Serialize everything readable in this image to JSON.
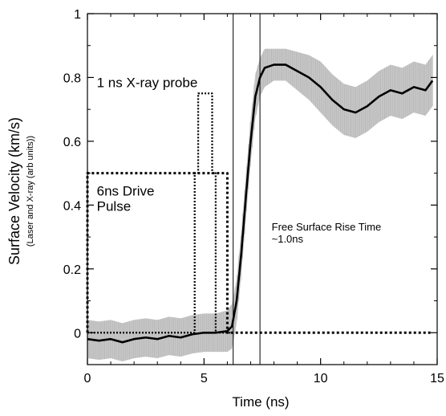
{
  "chart_data": {
    "type": "line",
    "xlabel": "Time (ns)",
    "ylabel": "Surface Velocity (km/s)",
    "ylabel_sub": "(Laser and X-ray (arb units))",
    "xlim": [
      0,
      15
    ],
    "ylim": [
      -0.1,
      1.0
    ],
    "x_ticks": [
      0,
      5,
      10,
      15
    ],
    "y_ticks": [
      0,
      0.2,
      0.4,
      0.6,
      0.8,
      1
    ],
    "x_tick_labels": [
      "0",
      "5",
      "10",
      "15"
    ],
    "y_tick_labels": [
      "0",
      "0.2",
      "0.4",
      "0.6",
      "0.8",
      "1"
    ],
    "grid": false,
    "vlines": [
      6.25,
      7.4
    ],
    "annotations": [
      {
        "lines": [
          "1 ns X-ray probe"
        ],
        "x": 0.4,
        "y": 0.77
      },
      {
        "lines": [
          "6ns Drive",
          "Pulse"
        ],
        "x": 0.4,
        "y": 0.43
      },
      {
        "lines": [
          "Free Surface Rise Time",
          "~1.0ns"
        ],
        "x": 7.9,
        "y": 0.32
      }
    ],
    "series": [
      {
        "role": "velocity",
        "style": "solid",
        "x": [
          0,
          0.5,
          1,
          1.5,
          2,
          2.5,
          3,
          3.5,
          4,
          4.5,
          5,
          5.5,
          6,
          6.2,
          6.4,
          6.6,
          6.8,
          7.0,
          7.2,
          7.4,
          7.6,
          8,
          8.5,
          9,
          9.5,
          10,
          10.5,
          11,
          11.5,
          12,
          12.5,
          13,
          13.5,
          14,
          14.5,
          14.8
        ],
        "y": [
          -0.02,
          -0.025,
          -0.02,
          -0.03,
          -0.02,
          -0.015,
          -0.02,
          -0.01,
          -0.015,
          -0.005,
          0.0,
          0.0,
          0.005,
          0.02,
          0.1,
          0.25,
          0.43,
          0.6,
          0.74,
          0.8,
          0.83,
          0.84,
          0.84,
          0.82,
          0.8,
          0.77,
          0.73,
          0.7,
          0.69,
          0.71,
          0.74,
          0.76,
          0.75,
          0.77,
          0.76,
          0.79
        ]
      },
      {
        "role": "velocity-uncertainty",
        "style": "band",
        "x": [
          0,
          0.5,
          1,
          1.5,
          2,
          2.5,
          3,
          3.5,
          4,
          4.5,
          5,
          5.5,
          6,
          6.2,
          6.4,
          6.6,
          6.8,
          7.0,
          7.2,
          7.4,
          7.6,
          8,
          8.5,
          9,
          9.5,
          10,
          10.5,
          11,
          11.5,
          12,
          12.5,
          13,
          13.5,
          14,
          14.5,
          14.8
        ],
        "lower": [
          -0.08,
          -0.085,
          -0.08,
          -0.09,
          -0.08,
          -0.075,
          -0.08,
          -0.07,
          -0.075,
          -0.065,
          -0.06,
          -0.06,
          -0.06,
          -0.05,
          0.03,
          0.18,
          0.36,
          0.53,
          0.67,
          0.74,
          0.77,
          0.79,
          0.79,
          0.76,
          0.73,
          0.69,
          0.65,
          0.62,
          0.61,
          0.63,
          0.66,
          0.68,
          0.67,
          0.69,
          0.68,
          0.71
        ],
        "upper": [
          0.04,
          0.035,
          0.04,
          0.03,
          0.04,
          0.045,
          0.04,
          0.05,
          0.045,
          0.055,
          0.06,
          0.06,
          0.07,
          0.09,
          0.17,
          0.32,
          0.5,
          0.67,
          0.81,
          0.86,
          0.89,
          0.89,
          0.89,
          0.88,
          0.87,
          0.85,
          0.81,
          0.78,
          0.77,
          0.79,
          0.82,
          0.84,
          0.83,
          0.85,
          0.84,
          0.87
        ]
      },
      {
        "role": "drive-pulse",
        "style": "dashed",
        "x": [
          0,
          0,
          6,
          6,
          14.8
        ],
        "y": [
          0,
          0.5,
          0.5,
          0,
          0
        ]
      },
      {
        "role": "x-ray-probe",
        "style": "dotted",
        "x": [
          0,
          4.6,
          4.6,
          4.75,
          4.75,
          5.35,
          5.35,
          5.5,
          5.5,
          6.3
        ],
        "y": [
          0,
          0,
          0.5,
          0.5,
          0.75,
          0.75,
          0.5,
          0.5,
          0,
          0
        ]
      }
    ]
  }
}
